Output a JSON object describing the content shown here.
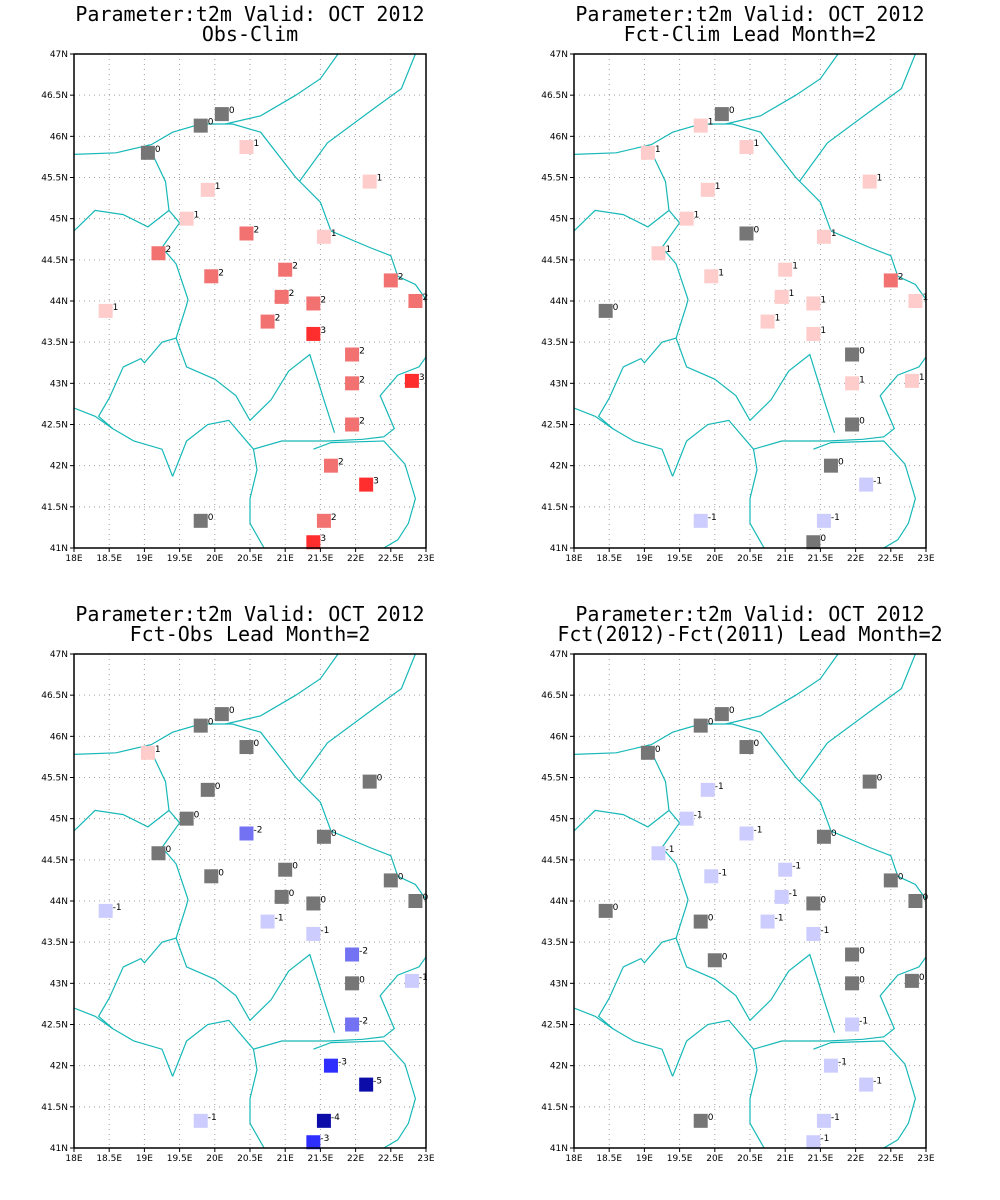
{
  "colors": {
    "coast": "#17b8b8",
    "frame": "#000000",
    "grid": "#a0a0a0",
    "zero": "#767676",
    "pos": {
      "1": "#ffcccc",
      "2": "#f27272",
      "3": "#ff2e2e"
    },
    "neg": {
      "-1": "#ccccff",
      "-2": "#7272f2",
      "-3": "#2e2eff",
      "-4": "#0c0ca8",
      "-5": "#0c0ca8"
    }
  },
  "axis": {
    "lon_ticks": [
      18,
      18.5,
      19,
      19.5,
      20,
      20.5,
      21,
      21.5,
      22,
      22.5,
      23
    ],
    "lon_labels": [
      "18E",
      "18.5E",
      "19E",
      "19.5E",
      "20E",
      "20.5E",
      "21E",
      "21.5E",
      "22E",
      "22.5E",
      "23E"
    ],
    "lat_ticks": [
      41,
      41.5,
      42,
      42.5,
      43,
      43.5,
      44,
      44.5,
      45,
      45.5,
      46,
      46.5,
      47
    ],
    "lat_labels": [
      "41N",
      "41.5N",
      "42N",
      "42.5N",
      "43N",
      "43.5N",
      "44N",
      "44.5N",
      "45N",
      "45.5N",
      "46N",
      "46.5N",
      "47N"
    ],
    "xlim": [
      18,
      23
    ],
    "ylim": [
      41,
      47
    ]
  },
  "coastlines": [
    [
      [
        18,
        45.78
      ],
      [
        18.6,
        45.8
      ],
      [
        19.1,
        45.9
      ],
      [
        19.4,
        46.05
      ],
      [
        19.8,
        46.15
      ],
      [
        20.25,
        46.15
      ],
      [
        20.65,
        46.05
      ],
      [
        21.15,
        45.5
      ],
      [
        21.5,
        45.2
      ],
      [
        21.65,
        44.85
      ],
      [
        22.2,
        44.65
      ],
      [
        22.5,
        44.55
      ],
      [
        22.6,
        44.3
      ],
      [
        22.85,
        44.2
      ],
      [
        23,
        44.02
      ]
    ],
    [
      [
        21.2,
        45.45
      ],
      [
        21.6,
        45.92
      ],
      [
        22.2,
        46.3
      ],
      [
        22.65,
        46.58
      ],
      [
        22.85,
        47
      ]
    ],
    [
      [
        20.15,
        46.15
      ],
      [
        20.65,
        46.25
      ],
      [
        21.15,
        46.5
      ],
      [
        21.5,
        46.7
      ],
      [
        21.75,
        47
      ]
    ],
    [
      [
        19.05,
        45.9
      ],
      [
        19.3,
        45.45
      ],
      [
        19.35,
        45.1
      ],
      [
        19.5,
        44.95
      ],
      [
        19.25,
        44.65
      ],
      [
        19.45,
        44.45
      ],
      [
        19.62,
        44.02
      ],
      [
        19.6,
        43.95
      ],
      [
        19.45,
        43.55
      ],
      [
        19.25,
        43.5
      ],
      [
        19.15,
        43.4
      ],
      [
        19.0,
        43.25
      ],
      [
        18.95,
        43.3
      ],
      [
        18.7,
        43.2
      ],
      [
        18.5,
        42.82
      ],
      [
        18.35,
        42.6
      ],
      [
        18.55,
        42.45
      ],
      [
        18.85,
        42.3
      ],
      [
        19.25,
        42.2
      ],
      [
        19.4,
        41.87
      ]
    ],
    [
      [
        19.4,
        41.87
      ],
      [
        19.6,
        42.3
      ],
      [
        19.9,
        42.5
      ],
      [
        20.2,
        42.55
      ],
      [
        20.3,
        42.45
      ],
      [
        20.55,
        42.2
      ],
      [
        20.6,
        41.95
      ],
      [
        20.5,
        41.6
      ],
      [
        20.5,
        41.3
      ],
      [
        20.7,
        41.0
      ]
    ],
    [
      [
        20.55,
        42.2
      ],
      [
        20.95,
        42.3
      ],
      [
        21.2,
        42.3
      ],
      [
        21.6,
        42.3
      ],
      [
        22.1,
        42.32
      ],
      [
        22.4,
        42.35
      ],
      [
        22.55,
        42.45
      ],
      [
        22.35,
        42.85
      ],
      [
        22.6,
        43.1
      ],
      [
        22.9,
        43.2
      ],
      [
        23,
        43.32
      ]
    ],
    [
      [
        21.4,
        42.2
      ],
      [
        21.65,
        42.28
      ],
      [
        22.4,
        42.3
      ],
      [
        22.7,
        42.02
      ],
      [
        22.85,
        41.6
      ],
      [
        22.75,
        41.3
      ],
      [
        22.6,
        41.1
      ],
      [
        22.4,
        41.0
      ]
    ],
    [
      [
        19.45,
        43.55
      ],
      [
        19.6,
        43.2
      ],
      [
        20.0,
        43.05
      ],
      [
        20.3,
        42.85
      ],
      [
        20.5,
        42.55
      ],
      [
        20.8,
        42.8
      ],
      [
        21.05,
        43.15
      ],
      [
        21.35,
        43.35
      ],
      [
        21.55,
        42.8
      ],
      [
        21.7,
        42.4
      ]
    ],
    [
      [
        18,
        42.7
      ],
      [
        18.3,
        42.6
      ],
      [
        18.55,
        42.45
      ]
    ],
    [
      [
        18,
        44.85
      ],
      [
        18.3,
        45.1
      ],
      [
        18.7,
        45.05
      ],
      [
        19.05,
        44.9
      ],
      [
        19.35,
        45.1
      ]
    ]
  ],
  "panels": [
    {
      "title_line1": "Parameter:t2m Valid: OCT 2012",
      "title_line2": "Obs-Clim",
      "stations": [
        [
          20.1,
          46.27,
          0
        ],
        [
          19.8,
          46.13,
          0
        ],
        [
          19.05,
          45.8,
          0
        ],
        [
          20.45,
          45.87,
          1
        ],
        [
          19.9,
          45.35,
          1
        ],
        [
          22.2,
          45.45,
          1
        ],
        [
          19.6,
          45.0,
          1
        ],
        [
          20.45,
          44.82,
          2
        ],
        [
          21.55,
          44.78,
          1
        ],
        [
          19.2,
          44.58,
          2
        ],
        [
          19.95,
          44.3,
          2
        ],
        [
          21.0,
          44.38,
          2
        ],
        [
          22.5,
          44.25,
          2
        ],
        [
          20.95,
          44.05,
          2
        ],
        [
          21.4,
          43.97,
          2
        ],
        [
          22.85,
          44.0,
          2
        ],
        [
          18.45,
          43.88,
          1
        ],
        [
          20.75,
          43.75,
          2
        ],
        [
          21.4,
          43.6,
          3
        ],
        [
          21.95,
          43.35,
          2
        ],
        [
          21.95,
          43.0,
          2
        ],
        [
          22.8,
          43.03,
          3
        ],
        [
          21.95,
          42.5,
          2
        ],
        [
          21.65,
          42.0,
          2
        ],
        [
          22.15,
          41.77,
          3
        ],
        [
          19.8,
          41.33,
          0
        ],
        [
          21.55,
          41.33,
          2
        ],
        [
          21.4,
          41.07,
          3
        ]
      ]
    },
    {
      "title_line1": "Parameter:t2m Valid: OCT 2012",
      "title_line2": "Fct-Clim Lead Month=2",
      "stations": [
        [
          20.1,
          46.27,
          0
        ],
        [
          19.8,
          46.13,
          1
        ],
        [
          19.05,
          45.8,
          1
        ],
        [
          20.45,
          45.87,
          1
        ],
        [
          19.9,
          45.35,
          1
        ],
        [
          22.2,
          45.45,
          1
        ],
        [
          19.6,
          45.0,
          1
        ],
        [
          20.45,
          44.82,
          0
        ],
        [
          21.55,
          44.78,
          1
        ],
        [
          19.2,
          44.58,
          1
        ],
        [
          19.95,
          44.3,
          1
        ],
        [
          21.0,
          44.38,
          1
        ],
        [
          22.5,
          44.25,
          2
        ],
        [
          20.95,
          44.05,
          1
        ],
        [
          21.4,
          43.97,
          1
        ],
        [
          22.85,
          44.0,
          1
        ],
        [
          18.45,
          43.88,
          0
        ],
        [
          20.75,
          43.75,
          1
        ],
        [
          21.4,
          43.6,
          1
        ],
        [
          21.95,
          43.35,
          0
        ],
        [
          21.95,
          43.0,
          1
        ],
        [
          22.8,
          43.03,
          1
        ],
        [
          21.95,
          42.5,
          0
        ],
        [
          21.65,
          42.0,
          0
        ],
        [
          22.15,
          41.77,
          -1
        ],
        [
          19.8,
          41.33,
          -1
        ],
        [
          21.55,
          41.33,
          -1
        ],
        [
          21.4,
          41.07,
          0
        ]
      ]
    },
    {
      "title_line1": "Parameter:t2m Valid: OCT 2012",
      "title_line2": "Fct-Obs Lead Month=2",
      "stations": [
        [
          20.1,
          46.27,
          0
        ],
        [
          19.8,
          46.13,
          0
        ],
        [
          19.05,
          45.8,
          1
        ],
        [
          20.45,
          45.87,
          0
        ],
        [
          19.9,
          45.35,
          0
        ],
        [
          22.2,
          45.45,
          0
        ],
        [
          19.6,
          45.0,
          0
        ],
        [
          20.45,
          44.82,
          -2
        ],
        [
          21.55,
          44.78,
          0
        ],
        [
          19.2,
          44.58,
          0
        ],
        [
          19.95,
          44.3,
          0
        ],
        [
          21.0,
          44.38,
          0
        ],
        [
          22.5,
          44.25,
          0
        ],
        [
          20.95,
          44.05,
          0
        ],
        [
          21.4,
          43.97,
          0
        ],
        [
          22.85,
          44.0,
          0
        ],
        [
          18.45,
          43.88,
          -1
        ],
        [
          20.75,
          43.75,
          -1
        ],
        [
          21.4,
          43.6,
          -1
        ],
        [
          21.95,
          43.35,
          -2
        ],
        [
          21.95,
          43.0,
          0
        ],
        [
          22.8,
          43.03,
          -1
        ],
        [
          21.95,
          42.5,
          -2
        ],
        [
          21.65,
          42.0,
          -3
        ],
        [
          22.15,
          41.77,
          -5
        ],
        [
          19.8,
          41.33,
          -1
        ],
        [
          21.55,
          41.33,
          -4
        ],
        [
          21.4,
          41.07,
          -3
        ]
      ]
    },
    {
      "title_line1": "Parameter:t2m Valid: OCT 2012",
      "title_line2": "Fct(2012)-Fct(2011) Lead Month=2",
      "stations": [
        [
          20.1,
          46.27,
          0
        ],
        [
          19.8,
          46.13,
          0
        ],
        [
          19.05,
          45.8,
          0
        ],
        [
          20.45,
          45.87,
          0
        ],
        [
          19.9,
          45.35,
          -1
        ],
        [
          22.2,
          45.45,
          0
        ],
        [
          19.6,
          45.0,
          -1
        ],
        [
          20.45,
          44.82,
          -1
        ],
        [
          21.55,
          44.78,
          0
        ],
        [
          19.2,
          44.58,
          -1
        ],
        [
          19.95,
          44.3,
          -1
        ],
        [
          21.0,
          44.38,
          -1
        ],
        [
          22.5,
          44.25,
          0
        ],
        [
          20.95,
          44.05,
          -1
        ],
        [
          21.4,
          43.97,
          0
        ],
        [
          22.85,
          44.0,
          0
        ],
        [
          18.45,
          43.88,
          0
        ],
        [
          19.8,
          43.75,
          0
        ],
        [
          20.75,
          43.75,
          -1
        ],
        [
          21.4,
          43.6,
          -1
        ],
        [
          21.95,
          43.35,
          0
        ],
        [
          20.0,
          43.28,
          0
        ],
        [
          21.95,
          43.0,
          0
        ],
        [
          22.8,
          43.03,
          0
        ],
        [
          21.95,
          42.5,
          -1
        ],
        [
          21.65,
          42.0,
          -1
        ],
        [
          22.15,
          41.77,
          -1
        ],
        [
          19.8,
          41.33,
          0
        ],
        [
          21.55,
          41.33,
          -1
        ],
        [
          21.4,
          41.07,
          -1
        ]
      ]
    }
  ]
}
